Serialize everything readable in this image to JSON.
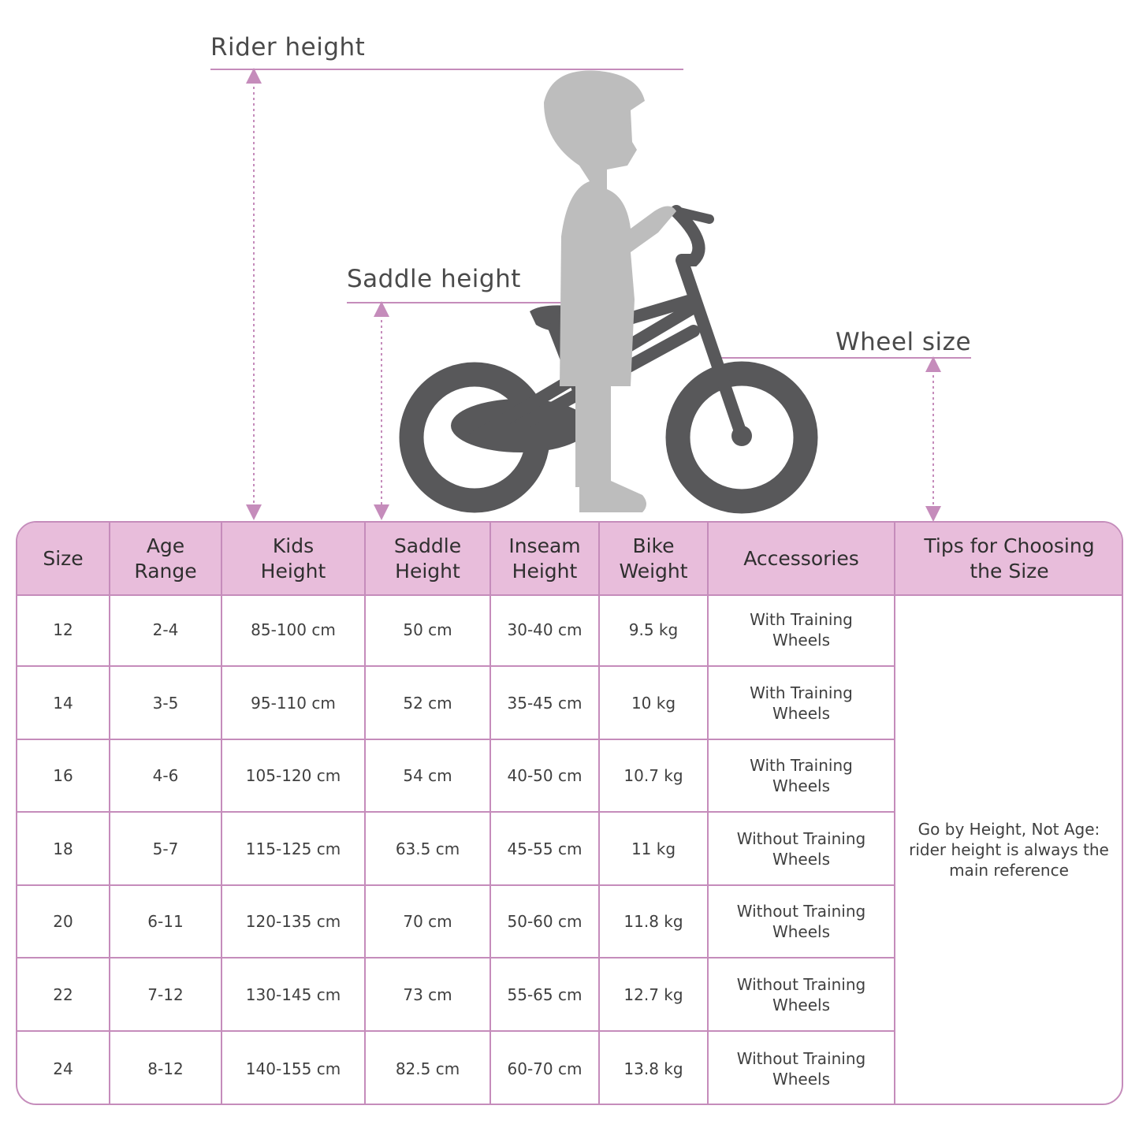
{
  "annotations": {
    "rider_height": "Rider height",
    "saddle_height": "Saddle height",
    "wheel_size": "Wheel size"
  },
  "colors": {
    "accent_line": "#c58cbb",
    "header_bg": "#e8bddb",
    "bike": "#58585a",
    "kid_silhouette": "#bdbdbd"
  },
  "illustration": {
    "icons": [
      "kid-silhouette-icon",
      "bicycle-icon"
    ]
  },
  "table": {
    "headers": [
      "Size",
      "Age\nRange",
      "Kids\nHeight",
      "Saddle\nHeight",
      "Inseam\nHeight",
      "Bike\nWeight",
      "Accessories",
      "Tips for Choosing\nthe Size"
    ],
    "rows": [
      [
        "12",
        "2-4",
        "85-100 cm",
        "50 cm",
        "30-40 cm",
        "9.5 kg",
        "With Training\nWheels"
      ],
      [
        "14",
        "3-5",
        "95-110 cm",
        "52 cm",
        "35-45 cm",
        "10 kg",
        "With Training\nWheels"
      ],
      [
        "16",
        "4-6",
        "105-120 cm",
        "54 cm",
        "40-50 cm",
        "10.7 kg",
        "With Training\nWheels"
      ],
      [
        "18",
        "5-7",
        "115-125 cm",
        "63.5 cm",
        "45-55 cm",
        "11 kg",
        "Without Training\nWheels"
      ],
      [
        "20",
        "6-11",
        "120-135 cm",
        "70 cm",
        "50-60 cm",
        "11.8 kg",
        "Without Training\nWheels"
      ],
      [
        "22",
        "7-12",
        "130-145 cm",
        "73 cm",
        "55-65 cm",
        "12.7 kg",
        "Without Training\nWheels"
      ],
      [
        "24",
        "8-12",
        "140-155 cm",
        "82.5 cm",
        "60-70 cm",
        "13.8 kg",
        "Without Training\nWheels"
      ]
    ],
    "tip": "Go by Height, Not Age:\nrider height is always the\nmain reference"
  }
}
